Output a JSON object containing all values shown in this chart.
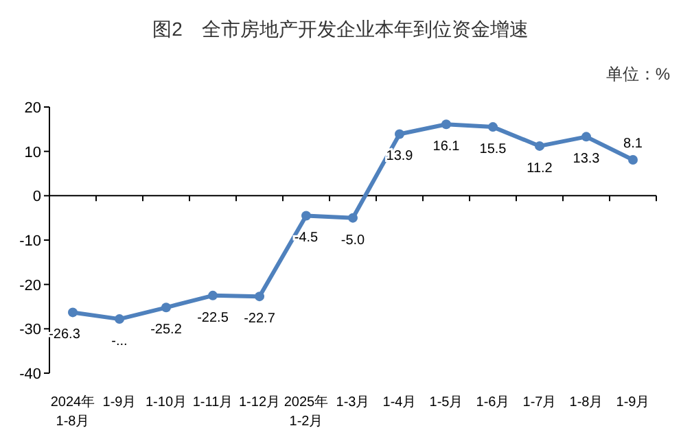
{
  "chart_data": {
    "type": "line",
    "title": "图2　全市房地产开发企业本年到位资金增速",
    "annotations": [
      "单位：%"
    ],
    "categories": [
      "2024年\n1-8月",
      "1-9月",
      "1-10月",
      "1-11月",
      "1-12月",
      "2025年\n1-2月",
      "1-3月",
      "1-4月",
      "1-5月",
      "1-6月",
      "1-7月",
      "1-8月",
      "1-9月"
    ],
    "series": [
      {
        "color": "#4f81bd",
        "values": [
          -26.3,
          -27.8,
          -25.2,
          -22.5,
          -22.7,
          -4.5,
          -5.0,
          13.9,
          16.1,
          15.5,
          11.2,
          13.3,
          8.1
        ],
        "value_labels": [
          "-26.3",
          "-...",
          "-25.2",
          "-22.5",
          "-22.7",
          "-4.5",
          "-5.0",
          "13.9",
          "16.1",
          "15.5",
          "11.2",
          "13.3",
          "8.1"
        ]
      }
    ],
    "ylim": [
      -40,
      20
    ],
    "yticks": [
      -40,
      -30,
      -20,
      -10,
      0,
      10,
      20
    ],
    "marker": "circle",
    "line_style": "solid"
  }
}
